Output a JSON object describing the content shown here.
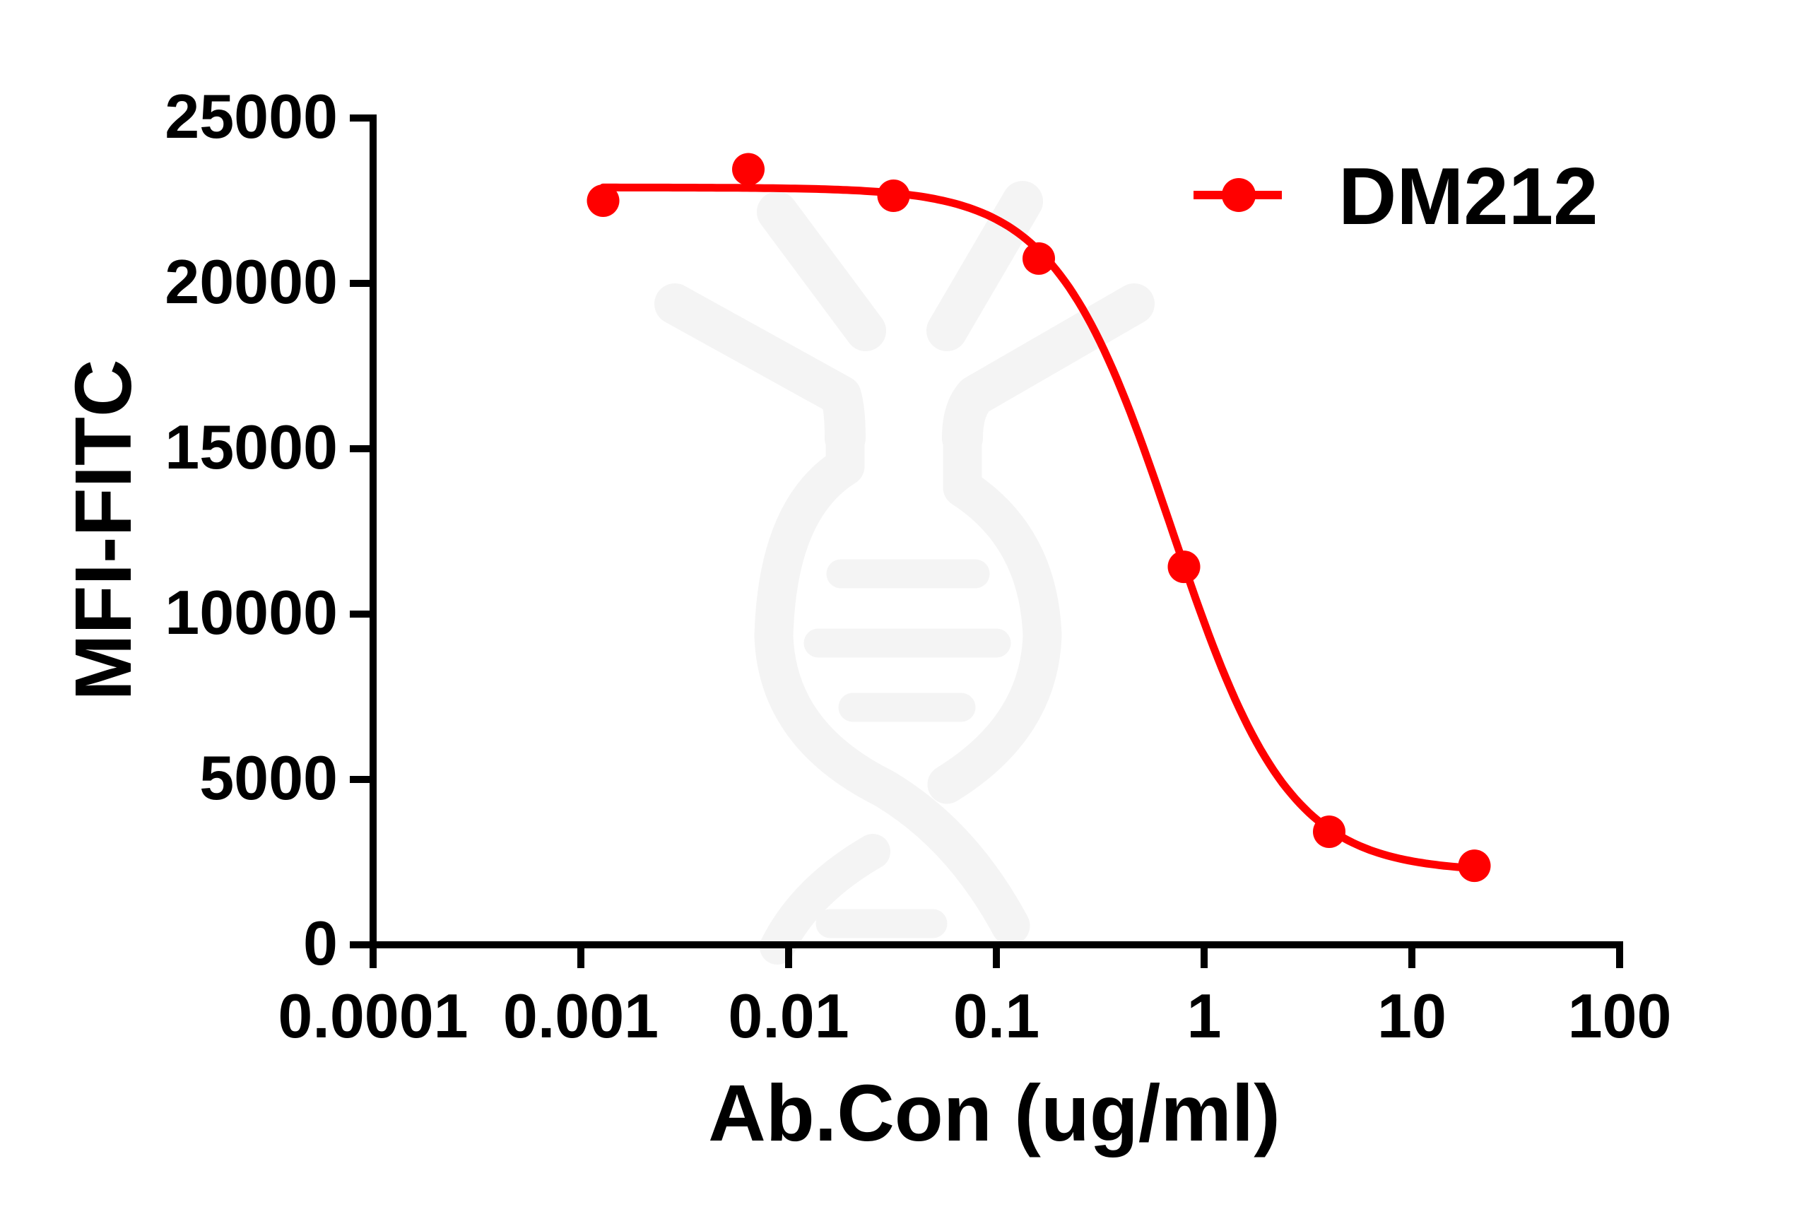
{
  "chart_data": {
    "type": "line",
    "title": "",
    "xlabel": "Ab.Con (ug/ml)",
    "ylabel": "MFI-FITC",
    "xscale": "log",
    "xlim": [
      0.0001,
      100
    ],
    "ylim": [
      0,
      25000
    ],
    "grid": false,
    "legend_position": "top-right",
    "x_ticks": [
      0.0001,
      0.001,
      0.01,
      0.1,
      1,
      10,
      100
    ],
    "x_tick_labels": [
      "0.0001",
      "0.001",
      "0.01",
      "0.1",
      "1",
      "10",
      "100"
    ],
    "y_ticks": [
      0,
      5000,
      10000,
      15000,
      20000,
      25000
    ],
    "y_tick_labels": [
      "0",
      "5000",
      "10000",
      "15000",
      "20000",
      "25000"
    ],
    "series": [
      {
        "name": "DM212",
        "color": "#ff0000",
        "marker": "circle",
        "x": [
          0.00128,
          0.0064,
          0.032,
          0.16,
          0.8,
          4,
          20
        ],
        "y": [
          22500,
          23450,
          22650,
          20750,
          11430,
          3420,
          2390
        ],
        "fit": {
          "model": "4PL",
          "top": 22900,
          "bottom": 2200,
          "ic50": 0.7,
          "hill": 1.55
        }
      }
    ]
  },
  "colors": {
    "axis": "#000000",
    "series": "#ff0000",
    "watermark": "#f4f4f4",
    "background": "#ffffff"
  },
  "watermark": {
    "icon": "dna-antibody-logo-icon"
  }
}
